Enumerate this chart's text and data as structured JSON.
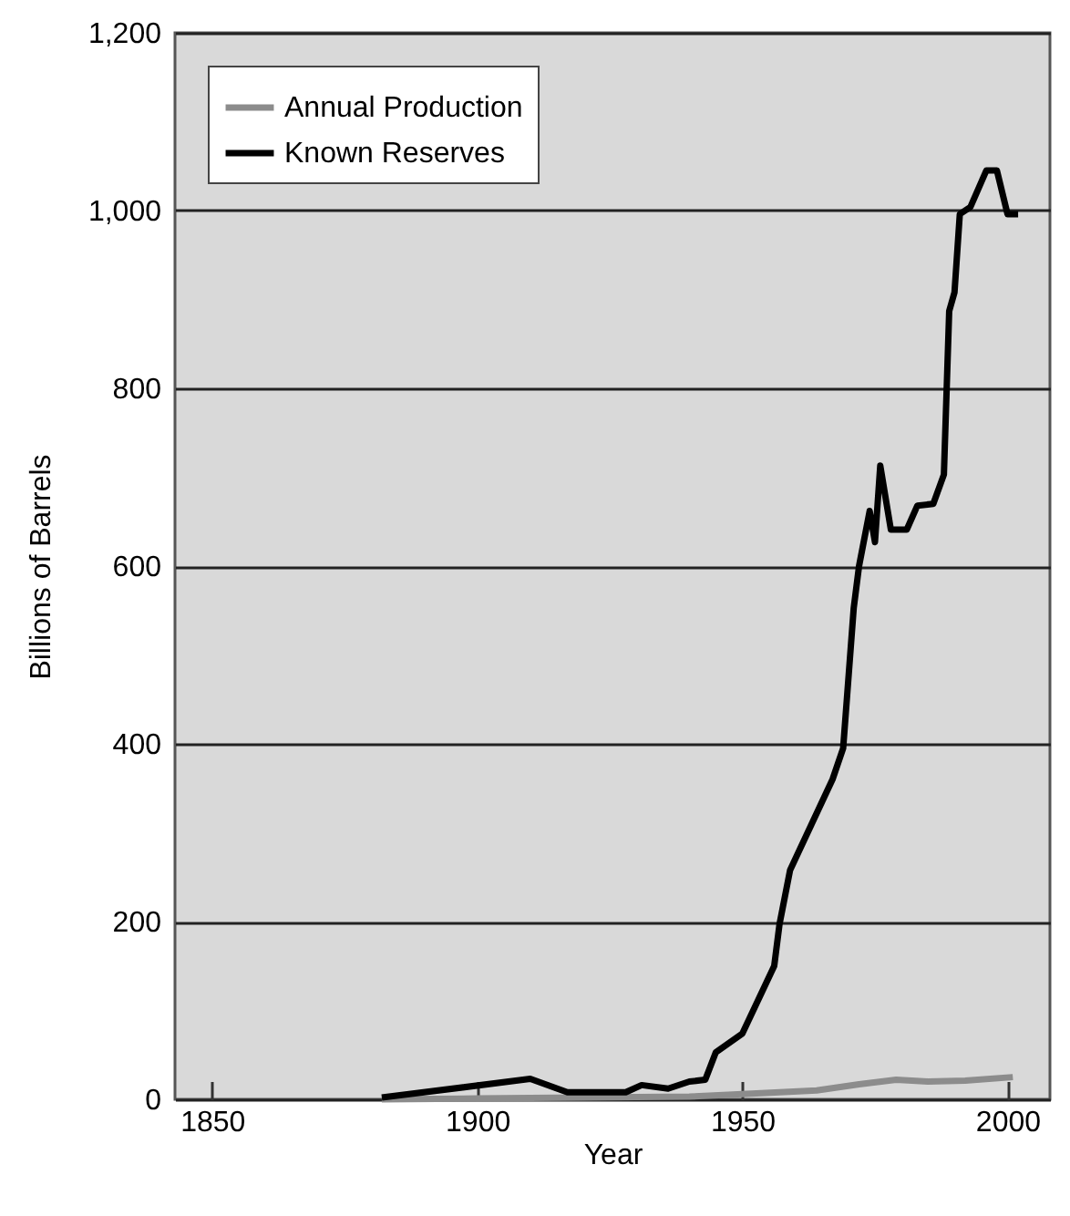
{
  "chart_data": {
    "type": "line",
    "xlabel": "Year",
    "ylabel": "Billions of Barrels",
    "xlim": [
      1843,
      2008
    ],
    "xticks": [
      1850,
      1900,
      1950,
      2000
    ],
    "ylim": [
      0,
      1200
    ],
    "yticks": [
      0,
      200,
      400,
      600,
      800,
      {
        "value": 1000,
        "label": "1,000"
      },
      {
        "value": 1200,
        "label": "1,200"
      }
    ],
    "grid": "y",
    "legend": "top left",
    "series": [
      {
        "name": "Annual Production",
        "color": "#8c8c8c",
        "x": [
          1882,
          1900,
          1920,
          1940,
          1950,
          1964,
          1972,
          1979,
          1985,
          1992,
          2001
        ],
        "values": [
          0,
          1,
          2,
          3,
          6,
          10,
          17,
          22,
          20,
          21,
          25
        ]
      },
      {
        "name": "Known Reserves",
        "color": "#000000",
        "x": [
          1882,
          1910,
          1917,
          1928,
          1931,
          1936,
          1940,
          1943,
          1945,
          1950,
          1956,
          1957,
          1959,
          1963,
          1967,
          1969,
          1971,
          1972,
          1974,
          1975,
          1976,
          1978,
          1981,
          1983,
          1986,
          1988,
          1989,
          1990,
          1991,
          1993,
          1996,
          1998,
          2000,
          2002
        ],
        "values": [
          2,
          23,
          8,
          8,
          16,
          12,
          20,
          22,
          53,
          74,
          150,
          197,
          258,
          309,
          360,
          395,
          553,
          600,
          662,
          627,
          713,
          641,
          641,
          668,
          670,
          703,
          887,
          908,
          996,
          1004,
          1045,
          1045,
          996,
          996
        ]
      }
    ]
  }
}
